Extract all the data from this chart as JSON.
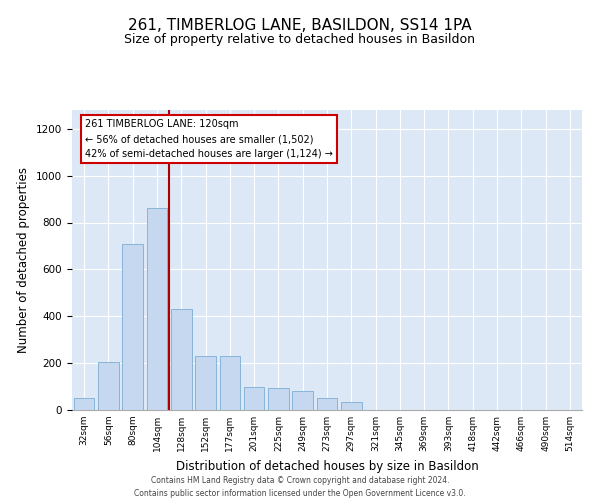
{
  "title": "261, TIMBERLOG LANE, BASILDON, SS14 1PA",
  "subtitle": "Size of property relative to detached houses in Basildon",
  "xlabel": "Distribution of detached houses by size in Basildon",
  "ylabel": "Number of detached properties",
  "categories": [
    "32sqm",
    "56sqm",
    "80sqm",
    "104sqm",
    "128sqm",
    "152sqm",
    "177sqm",
    "201sqm",
    "225sqm",
    "249sqm",
    "273sqm",
    "297sqm",
    "321sqm",
    "345sqm",
    "369sqm",
    "393sqm",
    "418sqm",
    "442sqm",
    "466sqm",
    "490sqm",
    "514sqm"
  ],
  "values": [
    50,
    205,
    710,
    860,
    430,
    230,
    230,
    100,
    95,
    80,
    50,
    35,
    0,
    0,
    0,
    0,
    0,
    0,
    0,
    0,
    0
  ],
  "bar_color": "#c5d8f0",
  "bar_edge_color": "#7aadd4",
  "red_line_color": "#aa0000",
  "annotation_line1": "261 TIMBERLOG LANE: 120sqm",
  "annotation_line2": "← 56% of detached houses are smaller (1,502)",
  "annotation_line3": "42% of semi-detached houses are larger (1,124) →",
  "annotation_box_color": "#ffffff",
  "annotation_box_edge_color": "#cc0000",
  "ylim": [
    0,
    1280
  ],
  "yticks": [
    0,
    200,
    400,
    600,
    800,
    1000,
    1200
  ],
  "background_color": "#dce8f5",
  "plot_bg_color": "#dce8f5",
  "footer_line1": "Contains HM Land Registry data © Crown copyright and database right 2024.",
  "footer_line2": "Contains public sector information licensed under the Open Government Licence v3.0.",
  "title_fontsize": 11,
  "subtitle_fontsize": 9,
  "xlabel_fontsize": 8.5,
  "ylabel_fontsize": 8.5,
  "red_line_x": 3.5
}
